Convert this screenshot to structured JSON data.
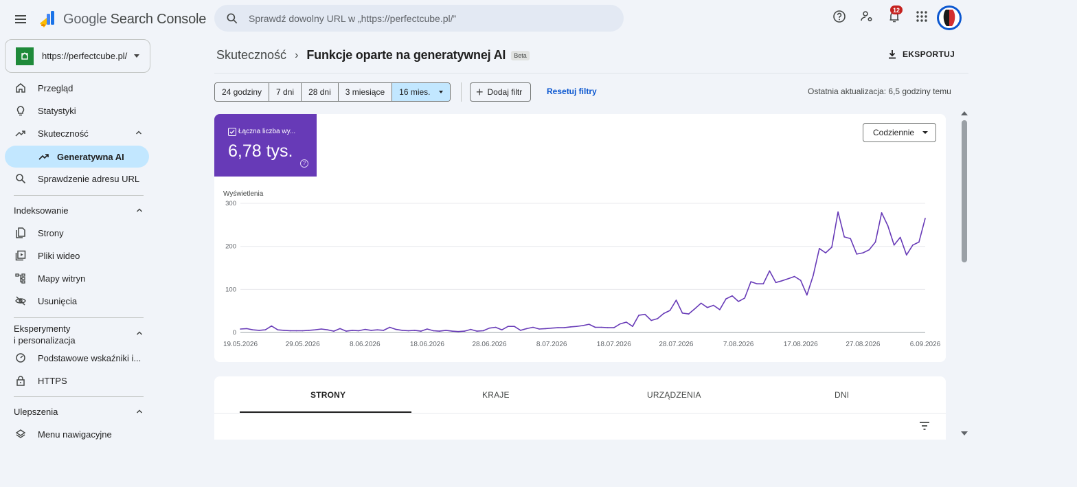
{
  "app": {
    "logo_google": "Google",
    "logo_product": "Search Console"
  },
  "search": {
    "placeholder": "Sprawdź dowolny URL w „https://perfectcube.pl/”"
  },
  "topbar": {
    "notifications_count": "12"
  },
  "property": {
    "url": "https://perfectcube.pl/"
  },
  "sidebar": {
    "overview": "Przegląd",
    "insights": "Statystyki",
    "performance": "Skuteczność",
    "generative_ai": "Generatywna AI",
    "url_inspection": "Sprawdzenie adresu URL",
    "indexing_section": "Indeksowanie",
    "pages": "Strony",
    "video_pages": "Pliki wideo",
    "sitemaps": "Mapy witryn",
    "removals": "Usunięcia",
    "experience_section": "Eksperymenty i personalizacja",
    "experience_line1": "Eksperymenty",
    "experience_line2": "i personalizacja",
    "core_web_vitals": "Podstawowe wskaźniki i...",
    "https": "HTTPS",
    "enhancements_section": "Ulepszenia",
    "breadcrumbs": "Menu nawigacyjne"
  },
  "header": {
    "breadcrumb_parent": "Skuteczność",
    "breadcrumb_current": "Funkcje oparte na generatywnej AI",
    "beta_badge": "Beta",
    "export_label": "EKSPORTUJ"
  },
  "filters": {
    "ranges": [
      "24 godziny",
      "7 dni",
      "28 dni",
      "3 miesiące"
    ],
    "selected_range": "16 mies.",
    "add_filter": "Dodaj filtr",
    "reset": "Resetuj filtry",
    "last_update": "Ostatnia aktualizacja: 6,5 godziny temu"
  },
  "metric": {
    "label": "Łączna liczba wy...",
    "value": "6,78 tys.",
    "checked": true,
    "color": "#673ab7"
  },
  "period_select": {
    "value": "Codziennie"
  },
  "chart_data": {
    "type": "line",
    "ylabel": "Wyświetlenia",
    "ylim": [
      0,
      300
    ],
    "yticks": [
      0,
      100,
      200,
      300
    ],
    "x_range": [
      "19.05.2026",
      "6.09.2026"
    ],
    "xtick_labels": [
      "19.05.2026",
      "29.05.2026",
      "8.06.2026",
      "18.06.2026",
      "28.06.2026",
      "8.07.2026",
      "18.07.2026",
      "28.07.2026",
      "7.08.2026",
      "17.08.2026",
      "27.08.2026",
      "6.09.2026"
    ],
    "series": [
      {
        "color": "#673ab7",
        "points": [
          [
            "19.05.2026",
            8
          ],
          [
            "20.05.2026",
            9
          ],
          [
            "21.05.2026",
            6
          ],
          [
            "22.05.2026",
            5
          ],
          [
            "23.05.2026",
            6
          ],
          [
            "24.05.2026",
            15
          ],
          [
            "25.05.2026",
            6
          ],
          [
            "26.05.2026",
            5
          ],
          [
            "27.05.2026",
            4
          ],
          [
            "28.05.2026",
            4
          ],
          [
            "29.05.2026",
            4
          ],
          [
            "30.05.2026",
            5
          ],
          [
            "31.05.2026",
            6
          ],
          [
            "1.06.2026",
            8
          ],
          [
            "2.06.2026",
            6
          ],
          [
            "3.06.2026",
            3
          ],
          [
            "4.06.2026",
            9
          ],
          [
            "5.06.2026",
            3
          ],
          [
            "6.06.2026",
            5
          ],
          [
            "7.06.2026",
            4
          ],
          [
            "8.06.2026",
            7
          ],
          [
            "9.06.2026",
            5
          ],
          [
            "10.06.2026",
            6
          ],
          [
            "11.06.2026",
            5
          ],
          [
            "12.06.2026",
            12
          ],
          [
            "13.06.2026",
            7
          ],
          [
            "14.06.2026",
            5
          ],
          [
            "15.06.2026",
            4
          ],
          [
            "16.06.2026",
            5
          ],
          [
            "17.06.2026",
            3
          ],
          [
            "18.06.2026",
            8
          ],
          [
            "19.06.2026",
            4
          ],
          [
            "20.06.2026",
            3
          ],
          [
            "21.06.2026",
            5
          ],
          [
            "22.06.2026",
            3
          ],
          [
            "23.06.2026",
            2
          ],
          [
            "24.06.2026",
            3
          ],
          [
            "25.06.2026",
            7
          ],
          [
            "26.06.2026",
            3
          ],
          [
            "27.06.2026",
            4
          ],
          [
            "28.06.2026",
            10
          ],
          [
            "29.06.2026",
            12
          ],
          [
            "30.06.2026",
            6
          ],
          [
            "1.07.2026",
            14
          ],
          [
            "2.07.2026",
            14
          ],
          [
            "3.07.2026",
            5
          ],
          [
            "4.07.2026",
            9
          ],
          [
            "5.07.2026",
            12
          ],
          [
            "6.07.2026",
            8
          ],
          [
            "7.07.2026",
            9
          ],
          [
            "8.07.2026",
            10
          ],
          [
            "9.07.2026",
            11
          ],
          [
            "10.07.2026",
            11
          ],
          [
            "11.07.2026",
            13
          ],
          [
            "12.07.2026",
            14
          ],
          [
            "13.07.2026",
            16
          ],
          [
            "14.07.2026",
            19
          ],
          [
            "15.07.2026",
            12
          ],
          [
            "16.07.2026",
            12
          ],
          [
            "17.07.2026",
            11
          ],
          [
            "18.07.2026",
            11
          ],
          [
            "19.07.2026",
            20
          ],
          [
            "20.07.2026",
            24
          ],
          [
            "21.07.2026",
            14
          ],
          [
            "22.07.2026",
            40
          ],
          [
            "23.07.2026",
            42
          ],
          [
            "24.07.2026",
            28
          ],
          [
            "25.07.2026",
            32
          ],
          [
            "26.07.2026",
            44
          ],
          [
            "27.07.2026",
            51
          ],
          [
            "28.07.2026",
            75
          ],
          [
            "29.07.2026",
            45
          ],
          [
            "30.07.2026",
            43
          ],
          [
            "31.07.2026",
            55
          ],
          [
            "1.08.2026",
            68
          ],
          [
            "2.08.2026",
            58
          ],
          [
            "3.08.2026",
            63
          ],
          [
            "4.08.2026",
            53
          ],
          [
            "5.08.2026",
            78
          ],
          [
            "6.08.2026",
            85
          ],
          [
            "7.08.2026",
            72
          ],
          [
            "8.08.2026",
            80
          ],
          [
            "9.08.2026",
            118
          ],
          [
            "10.08.2026",
            113
          ],
          [
            "11.08.2026",
            113
          ],
          [
            "12.08.2026",
            143
          ],
          [
            "13.08.2026",
            116
          ],
          [
            "14.08.2026",
            120
          ],
          [
            "15.08.2026",
            125
          ],
          [
            "16.08.2026",
            130
          ],
          [
            "17.08.2026",
            121
          ],
          [
            "18.08.2026",
            87
          ],
          [
            "19.08.2026",
            132
          ],
          [
            "20.08.2026",
            195
          ],
          [
            "21.08.2026",
            185
          ],
          [
            "22.08.2026",
            198
          ],
          [
            "23.08.2026",
            280
          ],
          [
            "24.08.2026",
            222
          ],
          [
            "25.08.2026",
            218
          ],
          [
            "26.08.2026",
            182
          ],
          [
            "27.08.2026",
            185
          ],
          [
            "28.08.2026",
            192
          ],
          [
            "29.08.2026",
            210
          ],
          [
            "30.08.2026",
            278
          ],
          [
            "31.08.2026",
            248
          ],
          [
            "1.09.2026",
            203
          ],
          [
            "2.09.2026",
            221
          ],
          [
            "3.09.2026",
            180
          ],
          [
            "4.09.2026",
            203
          ],
          [
            "5.09.2026",
            210
          ],
          [
            "6.09.2026",
            265
          ]
        ]
      }
    ],
    "grid": true
  },
  "tabs": [
    "STRONY",
    "KRAJE",
    "URZĄDZENIA",
    "DNI"
  ]
}
